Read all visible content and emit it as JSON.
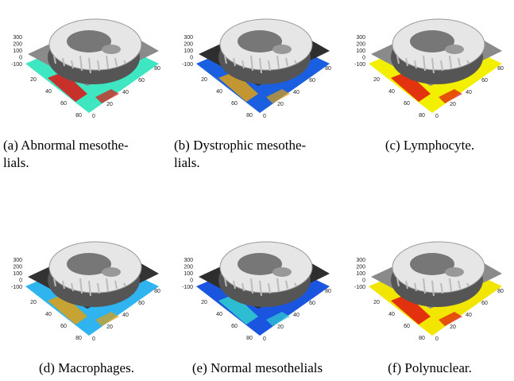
{
  "figure": {
    "panels": [
      {
        "caption": [
          "(a) Abnormal mesothe-",
          "lials."
        ],
        "plane": "#8a8a8a",
        "floor": "#3fe6c2",
        "accent": "#e01010",
        "z_ticks": [
          "300",
          "200",
          "100",
          "0",
          "-100"
        ],
        "x_ticks": [
          "20",
          "40",
          "60",
          "80"
        ],
        "y_ticks": [
          "0",
          "20",
          "40",
          "60",
          "80"
        ]
      },
      {
        "caption": [
          "(b) Dystrophic mesothe-",
          "lials."
        ],
        "plane": "#2e2e2e",
        "floor": "#1a5fe0",
        "accent": "#e0a010",
        "z_ticks": [
          "300",
          "200",
          "100",
          "0",
          "-100"
        ],
        "x_ticks": [
          "20",
          "40",
          "60",
          "80"
        ],
        "y_ticks": [
          "0",
          "20",
          "40",
          "60",
          "80"
        ]
      },
      {
        "caption": [
          "(c) Lymphocyte."
        ],
        "plane": "#8a8a8a",
        "floor": "#f2f000",
        "accent": "#e01010",
        "z_ticks": [
          "300",
          "200",
          "100",
          "0",
          "-100"
        ],
        "x_ticks": [
          "20",
          "40",
          "60",
          "80"
        ],
        "y_ticks": [
          "0",
          "20",
          "40",
          "60",
          "80"
        ]
      },
      {
        "caption": [
          "(d) Macrophages."
        ],
        "plane": "#333333",
        "floor": "#2fb4f0",
        "accent": "#e0a010",
        "z_ticks": [
          "300",
          "200",
          "100",
          "0",
          "-100"
        ],
        "x_ticks": [
          "20",
          "40",
          "60",
          "80"
        ],
        "y_ticks": [
          "0",
          "20",
          "40",
          "60",
          "80"
        ]
      },
      {
        "caption": [
          "(e) Normal mesothelials"
        ],
        "plane": "#2e2e2e",
        "floor": "#1a55e0",
        "accent": "#30d0d0",
        "z_ticks": [
          "300",
          "200",
          "100",
          "0",
          "-100"
        ],
        "x_ticks": [
          "20",
          "40",
          "60",
          "80"
        ],
        "y_ticks": [
          "0",
          "20",
          "40",
          "60",
          "80"
        ]
      },
      {
        "caption": [
          "(f) Polynuclear."
        ],
        "plane": "#8a8a8a",
        "floor": "#f2e600",
        "accent": "#e01010",
        "z_ticks": [
          "300",
          "200",
          "100",
          "0",
          "-100"
        ],
        "x_ticks": [
          "20",
          "40",
          "60",
          "80"
        ],
        "y_ticks": [
          "0",
          "20",
          "40",
          "60",
          "80"
        ]
      }
    ]
  }
}
